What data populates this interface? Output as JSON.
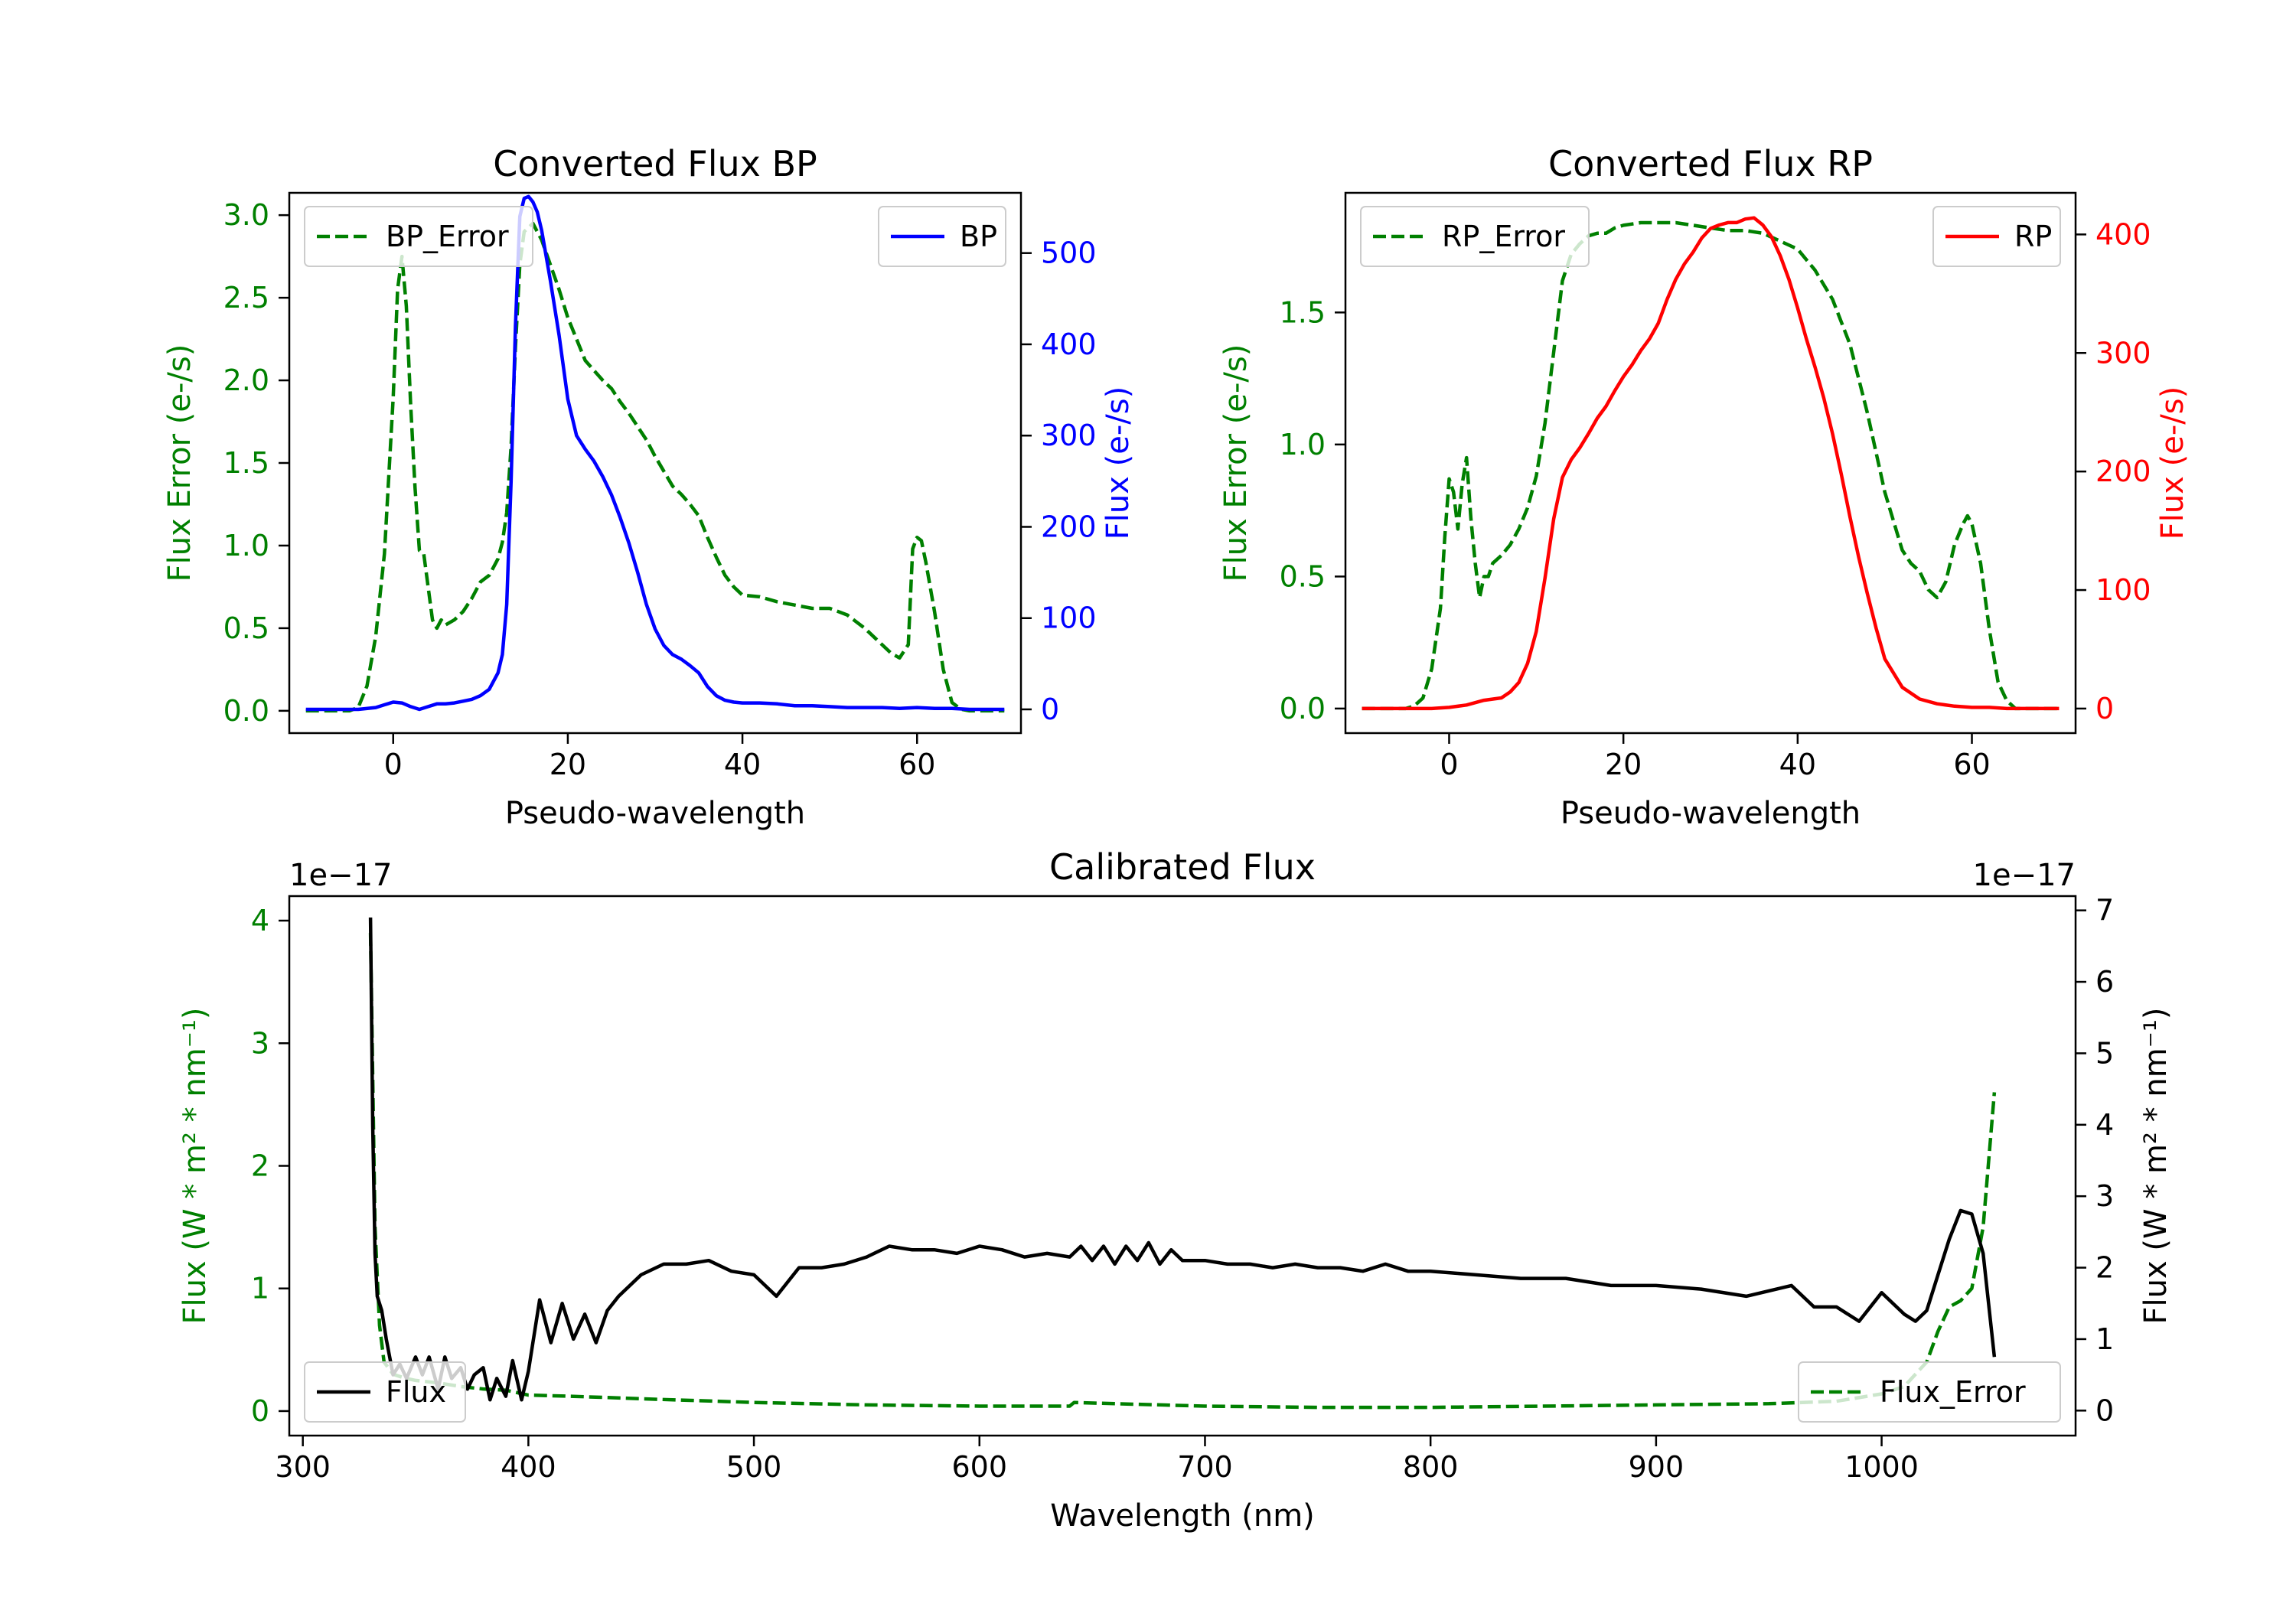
{
  "figure": {
    "exponent_left": "1e−17",
    "exponent_right": "1e−17"
  },
  "colors": {
    "bp": "#0000ff",
    "rp": "#ff0000",
    "error": "#008000",
    "flux": "#000000",
    "axis": "#000000"
  },
  "chart_data": [
    {
      "type": "line",
      "title": "Converted Flux BP",
      "xlabel": "Pseudo-wavelength",
      "ylabel_left": "Flux Error (e-/s)",
      "ylabel_right": "Flux (e-/s)",
      "xlim": [
        -11.9,
        71.9
      ],
      "ylim_left": [
        -0.135,
        3.135
      ],
      "ylim_right": [
        -26,
        566
      ],
      "xticks": [
        0,
        20,
        40,
        60
      ],
      "yticks_left": [
        0.0,
        0.5,
        1.0,
        1.5,
        2.0,
        2.5,
        3.0
      ],
      "yticks_right": [
        0,
        100,
        200,
        300,
        400,
        500
      ],
      "legend_left": "BP_Error",
      "legend_right": "BP",
      "series": [
        {
          "name": "BP_Error",
          "axis": "left",
          "style": "dashed",
          "color": "#008000",
          "x": [
            -10,
            -5,
            -4,
            -3,
            -2,
            -1,
            0,
            0.5,
            1,
            1.5,
            2,
            2.5,
            3,
            3.5,
            4,
            4.5,
            5,
            5.5,
            6,
            7,
            8,
            9,
            10,
            11,
            12,
            12.5,
            13,
            13.5,
            14,
            14.5,
            15,
            16,
            17,
            18,
            19,
            20,
            21,
            22,
            23,
            24,
            25,
            26,
            27,
            28,
            29,
            30,
            31,
            32,
            33,
            34,
            35,
            36,
            37,
            38,
            39,
            40,
            42,
            44,
            46,
            48,
            50,
            52,
            54,
            56,
            57,
            58,
            59,
            59.5,
            60,
            60.5,
            61,
            62,
            63,
            64,
            65,
            66,
            68,
            70
          ],
          "values": [
            0.0,
            0.0,
            0.02,
            0.15,
            0.45,
            0.95,
            1.9,
            2.55,
            2.75,
            2.45,
            1.85,
            1.35,
            0.97,
            0.95,
            0.75,
            0.55,
            0.5,
            0.55,
            0.52,
            0.55,
            0.6,
            0.68,
            0.78,
            0.82,
            0.92,
            1.02,
            1.2,
            1.6,
            2.2,
            2.7,
            2.9,
            2.95,
            2.85,
            2.7,
            2.55,
            2.38,
            2.25,
            2.12,
            2.06,
            2.0,
            1.95,
            1.87,
            1.8,
            1.72,
            1.64,
            1.54,
            1.45,
            1.36,
            1.31,
            1.25,
            1.18,
            1.05,
            0.93,
            0.82,
            0.75,
            0.7,
            0.69,
            0.66,
            0.64,
            0.62,
            0.62,
            0.58,
            0.5,
            0.4,
            0.35,
            0.32,
            0.4,
            0.98,
            1.05,
            1.03,
            0.9,
            0.6,
            0.25,
            0.05,
            0.01,
            0.0,
            0.0,
            0.0
          ]
        },
        {
          "name": "BP",
          "axis": "right",
          "style": "solid",
          "color": "#0000ff",
          "x": [
            -10,
            -6,
            -4,
            -2,
            -1,
            0,
            1,
            2,
            3,
            4,
            5,
            6,
            7,
            8,
            9,
            10,
            11,
            12,
            12.5,
            13,
            13.5,
            14,
            14.5,
            15,
            15.5,
            16,
            16.5,
            17,
            18,
            19,
            20,
            21,
            22,
            23,
            24,
            25,
            26,
            27,
            28,
            29,
            30,
            31,
            32,
            33,
            34,
            35,
            36,
            37,
            38,
            39,
            40,
            41,
            42,
            44,
            46,
            48,
            50,
            52,
            54,
            56,
            58,
            60,
            62,
            64,
            66,
            68,
            70
          ],
          "values": [
            0,
            0,
            0,
            2,
            5,
            8,
            7,
            3,
            0,
            3,
            6,
            6,
            7,
            9,
            11,
            15,
            22,
            40,
            60,
            115,
            250,
            420,
            540,
            560,
            562,
            556,
            545,
            525,
            470,
            410,
            340,
            300,
            285,
            272,
            255,
            235,
            210,
            182,
            150,
            115,
            88,
            70,
            60,
            55,
            48,
            40,
            25,
            15,
            10,
            8,
            7,
            7,
            7,
            6,
            4,
            4,
            3,
            2,
            2,
            2,
            1,
            2,
            1,
            1,
            0,
            0,
            0
          ]
        }
      ]
    },
    {
      "type": "line",
      "title": "Converted Flux RP",
      "xlabel": "Pseudo-wavelength",
      "ylabel_left": "Flux Error (e-/s)",
      "ylabel_right": "Flux (e-/s)",
      "xlim": [
        -11.9,
        71.9
      ],
      "ylim_left": [
        -0.093,
        1.953
      ],
      "ylim_right": [
        -20.7,
        435.1
      ],
      "xticks": [
        0,
        20,
        40,
        60
      ],
      "yticks_left": [
        0.0,
        0.5,
        1.0,
        1.5
      ],
      "yticks_right": [
        0,
        100,
        200,
        300,
        400
      ],
      "legend_left": "RP_Error",
      "legend_right": "RP",
      "series": [
        {
          "name": "RP_Error",
          "axis": "left",
          "style": "dashed",
          "color": "#008000",
          "x": [
            -10,
            -5,
            -4,
            -3,
            -2,
            -1,
            -0.5,
            0,
            0.5,
            1,
            1.5,
            2,
            2.5,
            3,
            3.5,
            4,
            4.5,
            5,
            6,
            7,
            8,
            9,
            10,
            11,
            12,
            13,
            14,
            15,
            16,
            17,
            18,
            19,
            20,
            22,
            24,
            26,
            28,
            30,
            32,
            34,
            36,
            38,
            40,
            42,
            44,
            46,
            48,
            50,
            52,
            53,
            54,
            55,
            56,
            57,
            58,
            59,
            59.5,
            60,
            61,
            62,
            63,
            64,
            65,
            66,
            68,
            70
          ],
          "values": [
            0.0,
            0.0,
            0.01,
            0.04,
            0.15,
            0.38,
            0.65,
            0.87,
            0.82,
            0.68,
            0.85,
            0.95,
            0.72,
            0.55,
            0.42,
            0.5,
            0.5,
            0.55,
            0.58,
            0.62,
            0.68,
            0.76,
            0.88,
            1.08,
            1.35,
            1.62,
            1.72,
            1.76,
            1.79,
            1.8,
            1.8,
            1.82,
            1.83,
            1.84,
            1.84,
            1.84,
            1.83,
            1.82,
            1.81,
            1.81,
            1.8,
            1.77,
            1.74,
            1.66,
            1.55,
            1.38,
            1.12,
            0.82,
            0.6,
            0.55,
            0.52,
            0.45,
            0.42,
            0.48,
            0.62,
            0.7,
            0.73,
            0.7,
            0.55,
            0.3,
            0.1,
            0.03,
            0.0,
            0.0,
            0.0,
            0.0
          ]
        },
        {
          "name": "RP",
          "axis": "right",
          "style": "solid",
          "color": "#ff0000",
          "x": [
            -10,
            -5,
            -2,
            0,
            2,
            4,
            6,
            7,
            8,
            9,
            10,
            11,
            12,
            13,
            14,
            15,
            16,
            17,
            18,
            19,
            20,
            21,
            22,
            23,
            24,
            25,
            26,
            27,
            28,
            29,
            30,
            31,
            32,
            33,
            34,
            35,
            36,
            37,
            38,
            39,
            40,
            41,
            42,
            43,
            44,
            45,
            46,
            47,
            48,
            49,
            50,
            52,
            54,
            56,
            58,
            60,
            62,
            64,
            66,
            70
          ],
          "values": [
            0,
            0,
            0,
            1,
            3,
            7,
            9,
            14,
            22,
            38,
            65,
            110,
            160,
            195,
            210,
            220,
            232,
            245,
            255,
            268,
            280,
            290,
            302,
            312,
            325,
            345,
            362,
            375,
            385,
            397,
            405,
            408,
            410,
            410,
            413,
            414,
            408,
            398,
            382,
            362,
            338,
            312,
            288,
            262,
            232,
            198,
            162,
            128,
            97,
            68,
            42,
            18,
            8,
            4,
            2,
            1,
            1,
            0,
            0,
            0
          ]
        }
      ]
    },
    {
      "type": "line",
      "title": "Calibrated Flux",
      "xlabel": "Wavelength (nm)",
      "ylabel_left": "Flux (W * m² * nm⁻¹)",
      "ylabel_right": "Flux (W * m² * nm⁻¹)",
      "y_units_scale": "1e-17",
      "xlim": [
        294,
        1086
      ],
      "ylim_left": [
        -0.2,
        4.2
      ],
      "ylim_right": [
        -0.35,
        7.2
      ],
      "xticks": [
        300,
        400,
        500,
        600,
        700,
        800,
        900,
        1000
      ],
      "yticks_left": [
        0,
        1,
        2,
        3,
        4
      ],
      "yticks_right": [
        0,
        1,
        2,
        3,
        4,
        5,
        6,
        7
      ],
      "legend_left": "Flux",
      "legend_right": "Flux_Error",
      "series": [
        {
          "name": "Flux_Error",
          "axis": "left",
          "style": "dashed",
          "color": "#008000",
          "x": [
            330,
            332,
            334,
            336,
            340,
            345,
            350,
            360,
            370,
            380,
            390,
            400,
            420,
            450,
            500,
            550,
            600,
            640,
            642,
            660,
            700,
            750,
            800,
            850,
            900,
            950,
            980,
            1000,
            1010,
            1020,
            1025,
            1030,
            1035,
            1040,
            1045,
            1050
          ],
          "values": [
            3.9,
            1.5,
            0.7,
            0.4,
            0.3,
            0.27,
            0.25,
            0.23,
            0.2,
            0.18,
            0.17,
            0.13,
            0.12,
            0.1,
            0.07,
            0.05,
            0.04,
            0.04,
            0.07,
            0.06,
            0.04,
            0.03,
            0.03,
            0.04,
            0.05,
            0.06,
            0.08,
            0.14,
            0.2,
            0.4,
            0.65,
            0.85,
            0.9,
            1.0,
            1.5,
            2.6
          ]
        },
        {
          "name": "Flux",
          "axis": "right",
          "style": "solid",
          "color": "#000000",
          "x": [
            330,
            331,
            332,
            333,
            335,
            337,
            340,
            343,
            346,
            350,
            353,
            356,
            360,
            363,
            366,
            370,
            373,
            376,
            380,
            383,
            386,
            390,
            393,
            397,
            400,
            405,
            410,
            415,
            420,
            425,
            430,
            435,
            440,
            450,
            460,
            470,
            480,
            490,
            500,
            510,
            520,
            530,
            540,
            550,
            560,
            570,
            580,
            590,
            600,
            610,
            620,
            630,
            640,
            645,
            650,
            655,
            660,
            665,
            670,
            675,
            680,
            685,
            690,
            700,
            710,
            720,
            730,
            740,
            750,
            760,
            770,
            780,
            790,
            800,
            820,
            840,
            860,
            880,
            900,
            920,
            940,
            960,
            970,
            980,
            990,
            1000,
            1005,
            1010,
            1015,
            1020,
            1025,
            1030,
            1035,
            1040,
            1045,
            1050
          ],
          "values": [
            6.9,
            4.0,
            2.2,
            1.6,
            1.4,
            1.0,
            0.5,
            0.65,
            0.45,
            0.75,
            0.5,
            0.75,
            0.3,
            0.75,
            0.45,
            0.6,
            0.3,
            0.5,
            0.6,
            0.15,
            0.45,
            0.2,
            0.7,
            0.15,
            0.55,
            1.55,
            0.95,
            1.5,
            1.0,
            1.35,
            0.95,
            1.4,
            1.6,
            1.9,
            2.05,
            2.05,
            2.1,
            1.95,
            1.9,
            1.6,
            2.0,
            2.0,
            2.05,
            2.15,
            2.3,
            2.25,
            2.25,
            2.2,
            2.3,
            2.25,
            2.15,
            2.2,
            2.15,
            2.3,
            2.1,
            2.3,
            2.05,
            2.3,
            2.1,
            2.35,
            2.05,
            2.25,
            2.1,
            2.1,
            2.05,
            2.05,
            2.0,
            2.05,
            2.0,
            2.0,
            1.95,
            2.05,
            1.95,
            1.95,
            1.9,
            1.85,
            1.85,
            1.75,
            1.75,
            1.7,
            1.6,
            1.75,
            1.45,
            1.45,
            1.25,
            1.65,
            1.5,
            1.35,
            1.25,
            1.4,
            1.9,
            2.4,
            2.8,
            2.75,
            2.2,
            0.75
          ]
        }
      ]
    }
  ]
}
